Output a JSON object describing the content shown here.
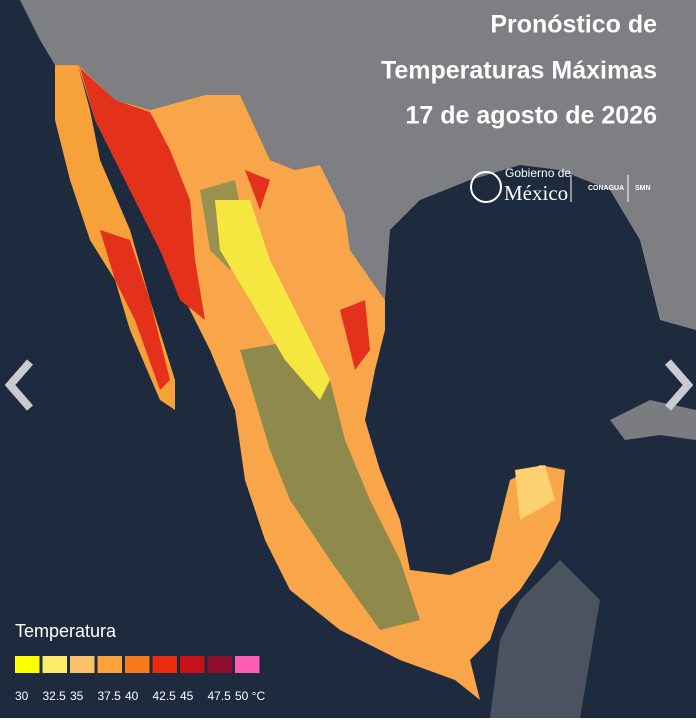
{
  "header": {
    "title_lines": [
      "Pronóstico de",
      "Temperaturas Máximas",
      "17 de agosto de 2026"
    ]
  },
  "logos": {
    "gobierno_line1": "Gobierno de",
    "gobierno_line2": "México",
    "conagua": "CONAGUA",
    "smn": "SMN"
  },
  "legend": {
    "title": "Temperatura",
    "items": [
      {
        "label": "30",
        "color": "#ffff00"
      },
      {
        "label": "32.5",
        "color": "#fde96a"
      },
      {
        "label": "35",
        "color": "#fcc06a"
      },
      {
        "label": "37.5",
        "color": "#fba23c"
      },
      {
        "label": "40",
        "color": "#f67a1c"
      },
      {
        "label": "42.5",
        "color": "#ec2a10"
      },
      {
        "label": "45",
        "color": "#c8101a"
      },
      {
        "label": "47.5",
        "color": "#8e0f2c"
      },
      {
        "label": "50 °C",
        "color": "#ff5cb6"
      }
    ]
  }
}
